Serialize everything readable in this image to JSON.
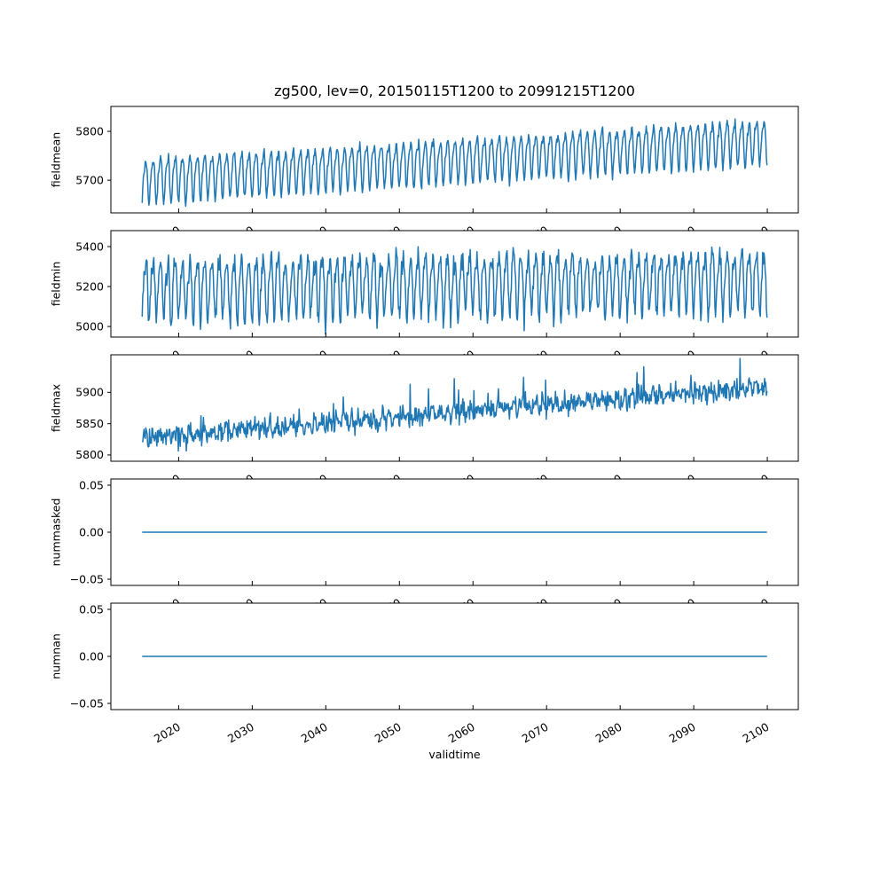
{
  "chart_data": {
    "type": "line",
    "title": "zg500, lev=0, 20150115T1200 to 20991215T1200",
    "xlabel": "validtime",
    "line_color": "#1f77b4",
    "frame_color": "#000000",
    "x_start": 2015.042,
    "x_end": 2099.958,
    "points_per_year": 12,
    "xlim": [
      2010.79,
      2104.21
    ],
    "xticks": [
      {
        "v": 2020,
        "label": "2020"
      },
      {
        "v": 2030,
        "label": "2030"
      },
      {
        "v": 2040,
        "label": "2040"
      },
      {
        "v": 2050,
        "label": "2050"
      },
      {
        "v": 2060,
        "label": "2060"
      },
      {
        "v": 2070,
        "label": "2070"
      },
      {
        "v": 2080,
        "label": "2080"
      },
      {
        "v": 2090,
        "label": "2090"
      },
      {
        "v": 2100,
        "label": "2100"
      }
    ],
    "xtick_rotation_deg": 30,
    "subplots": [
      {
        "ylabel": "fieldmean",
        "ylim": [
          5633,
          5851
        ],
        "yticks": [
          {
            "v": 5700,
            "label": "5700"
          },
          {
            "v": 5800,
            "label": "5800"
          }
        ],
        "model": {
          "seed": 7,
          "base": 5702,
          "trend_per_year": 0.95,
          "annual_amp": 42,
          "annual_phase": -1.5708,
          "semiannual_amp": 12,
          "semiannual_phase": -0.9,
          "noise_sd": 4.5,
          "spike_prob": 0,
          "spike_max": 0
        }
      },
      {
        "ylabel": "fieldmin",
        "ylim": [
          4947,
          5480
        ],
        "yticks": [
          {
            "v": 5000,
            "label": "5000"
          },
          {
            "v": 5200,
            "label": "5200"
          },
          {
            "v": 5400,
            "label": "5400"
          }
        ],
        "model": {
          "seed": 13,
          "base": 5195,
          "trend_per_year": 0.5,
          "annual_amp": 140,
          "annual_phase": -1.5708,
          "semiannual_amp": 38,
          "semiannual_phase": -0.9,
          "noise_sd": 28,
          "spike_prob": 0,
          "spike_max": 0
        }
      },
      {
        "ylabel": "fieldmax",
        "ylim": [
          5790,
          5960
        ],
        "yticks": [
          {
            "v": 5800,
            "label": "5800"
          },
          {
            "v": 5850,
            "label": "5850"
          },
          {
            "v": 5900,
            "label": "5900"
          }
        ],
        "model": {
          "seed": 21,
          "base": 5827,
          "trend_per_year": 0.95,
          "annual_amp": 6,
          "annual_phase": -1.5708,
          "semiannual_amp": 0,
          "semiannual_phase": 0,
          "noise_sd": 8,
          "spike_prob": 0.04,
          "spike_max": 45
        }
      },
      {
        "ylabel": "nummasked",
        "ylim": [
          -0.0566,
          0.0566
        ],
        "yticks": [
          {
            "v": 0.05,
            "label": "0.05"
          },
          {
            "v": 0,
            "label": "0.00"
          },
          {
            "v": -0.05,
            "label": "−0.05"
          }
        ],
        "model": {
          "constant": 0
        }
      },
      {
        "ylabel": "numnan",
        "ylim": [
          -0.0566,
          0.0566
        ],
        "yticks": [
          {
            "v": 0.05,
            "label": "0.05"
          },
          {
            "v": 0,
            "label": "0.00"
          },
          {
            "v": -0.05,
            "label": "−0.05"
          }
        ],
        "model": {
          "constant": 0
        }
      }
    ],
    "layout": {
      "fig_w": 1000,
      "fig_h": 1000,
      "left": 125,
      "right": 900,
      "subplot_tops": [
        120,
        260,
        400,
        540,
        680
      ],
      "axes_height": 120,
      "x_tick_len": 5,
      "y_tick_len": 4,
      "line_width": 1.5
    }
  }
}
